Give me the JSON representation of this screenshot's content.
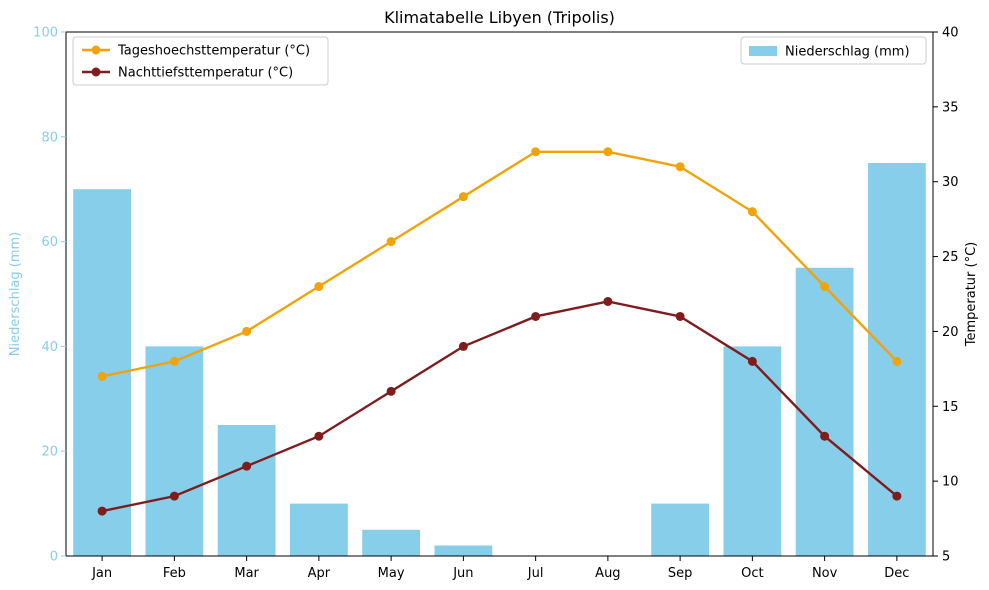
{
  "chart_data": {
    "type": "bar+line",
    "title": "Klimatabelle Libyen (Tripolis)",
    "categories": [
      "Jan",
      "Feb",
      "Mar",
      "Apr",
      "May",
      "Jun",
      "Jul",
      "Aug",
      "Sep",
      "Oct",
      "Nov",
      "Dec"
    ],
    "left_axis": {
      "label": "Niederschlag (mm)",
      "range": [
        0,
        100
      ],
      "ticks": [
        0,
        20,
        40,
        60,
        80,
        100
      ],
      "color": "#87ceeb"
    },
    "right_axis": {
      "label": "Temperatur (°C)",
      "range": [
        5,
        40
      ],
      "ticks": [
        5,
        10,
        15,
        20,
        25,
        30,
        35,
        40
      ]
    },
    "bar_series": {
      "name": "Niederschlag (mm)",
      "color": "#87ceeb",
      "values": [
        70,
        40,
        25,
        10,
        5,
        2,
        0,
        0,
        10,
        40,
        55,
        75
      ]
    },
    "line_series": [
      {
        "name": "Tageshoechsttemperatur (°C)",
        "color": "#f0a30a",
        "values": [
          17,
          18,
          20,
          23,
          26,
          29,
          32,
          32,
          31,
          28,
          23,
          18
        ]
      },
      {
        "name": "Nachttiefsttemperatur (°C)",
        "color": "#7f1c1c",
        "values": [
          8,
          9,
          11,
          13,
          16,
          19,
          21,
          22,
          21,
          18,
          13,
          9
        ]
      }
    ],
    "legends": {
      "lines_position": "top-left",
      "bars_position": "top-right"
    },
    "grid": false
  }
}
